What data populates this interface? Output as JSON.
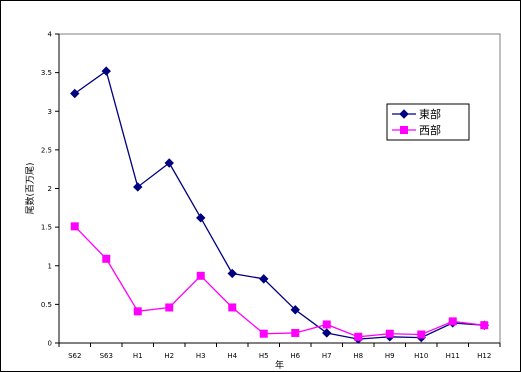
{
  "chart_data": {
    "type": "line",
    "categories": [
      "S62",
      "S63",
      "H1",
      "H2",
      "H3",
      "H4",
      "H5",
      "H6",
      "H7",
      "H8",
      "H9",
      "H10",
      "H11",
      "H12"
    ],
    "series": [
      {
        "name": "東部",
        "color": "#000080",
        "marker": "diamond",
        "values": [
          3.23,
          3.52,
          2.02,
          2.33,
          1.62,
          0.9,
          0.83,
          0.43,
          0.13,
          0.05,
          0.08,
          0.07,
          0.26,
          0.23
        ]
      },
      {
        "name": "西部",
        "color": "#ff00ff",
        "marker": "square",
        "values": [
          1.51,
          1.09,
          0.41,
          0.46,
          0.87,
          0.46,
          0.12,
          0.13,
          0.24,
          0.08,
          0.12,
          0.11,
          0.28,
          0.23
        ]
      }
    ],
    "yticks": [
      "0",
      "0.5",
      "1",
      "1.5",
      "2",
      "2.5",
      "3",
      "3.5",
      "4"
    ],
    "ylim": [
      0,
      4
    ],
    "ylabel": "尾数(百万尾)",
    "xlabel": "年",
    "grid": false,
    "legend_position": "right"
  }
}
